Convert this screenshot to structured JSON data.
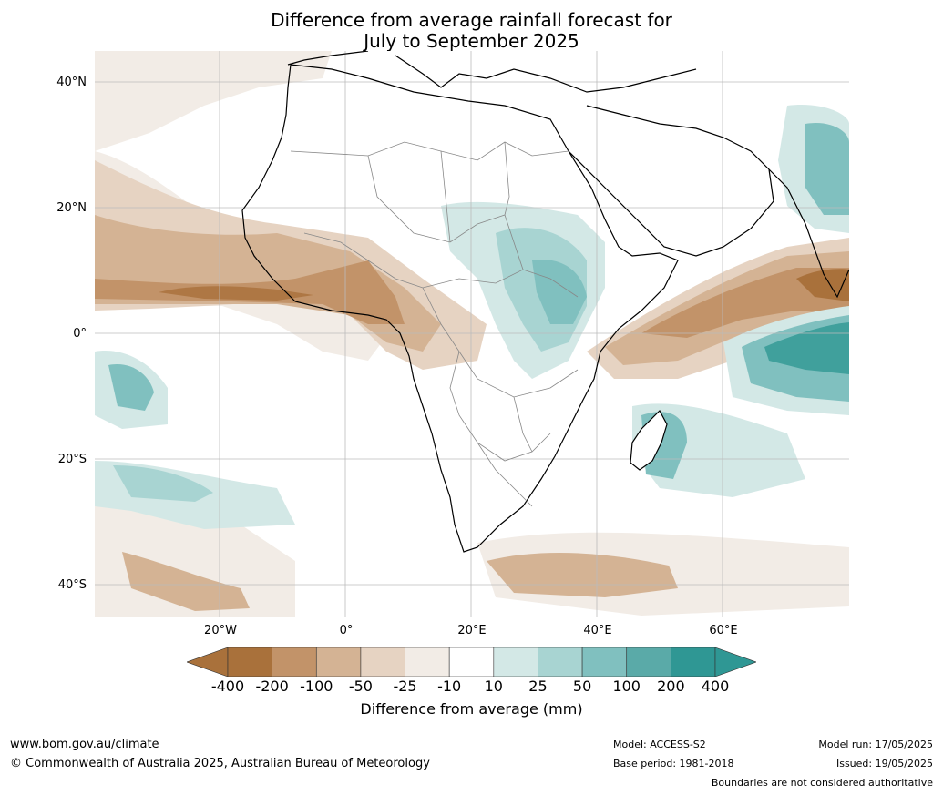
{
  "title": {
    "line1": "Difference from average rainfall forecast for",
    "line2": "July to September 2025"
  },
  "map": {
    "lat_labels": [
      "40°N",
      "20°N",
      "0°",
      "20°S",
      "40°S"
    ],
    "lon_labels": [
      "20°W",
      "0°",
      "20°E",
      "40°E",
      "60°E"
    ]
  },
  "colorbar": {
    "ticks": [
      "-400",
      "-200",
      "-100",
      "-50",
      "-25",
      "-10",
      "10",
      "25",
      "50",
      "100",
      "200",
      "400"
    ],
    "colors": [
      "#a9713b",
      "#a9713b",
      "#c29369",
      "#d4b394",
      "#e6d3c2",
      "#f2ece6",
      "#ffffff",
      "#d3e8e6",
      "#a8d4d2",
      "#80c0bf",
      "#5aaaa8",
      "#2f9794",
      "#2f9794"
    ],
    "label": "Difference from average (mm)"
  },
  "footer": {
    "website": "www.bom.gov.au/climate",
    "copyright": "© Commonwealth of Australia 2025, Australian Bureau of Meteorology",
    "model": "Model: ACCESS-S2",
    "base_period": "Base period: 1981-2018",
    "model_run": "Model run: 17/05/2025",
    "issued": "Issued: 19/05/2025",
    "disclaimer": "Boundaries are not considered authoritative"
  }
}
